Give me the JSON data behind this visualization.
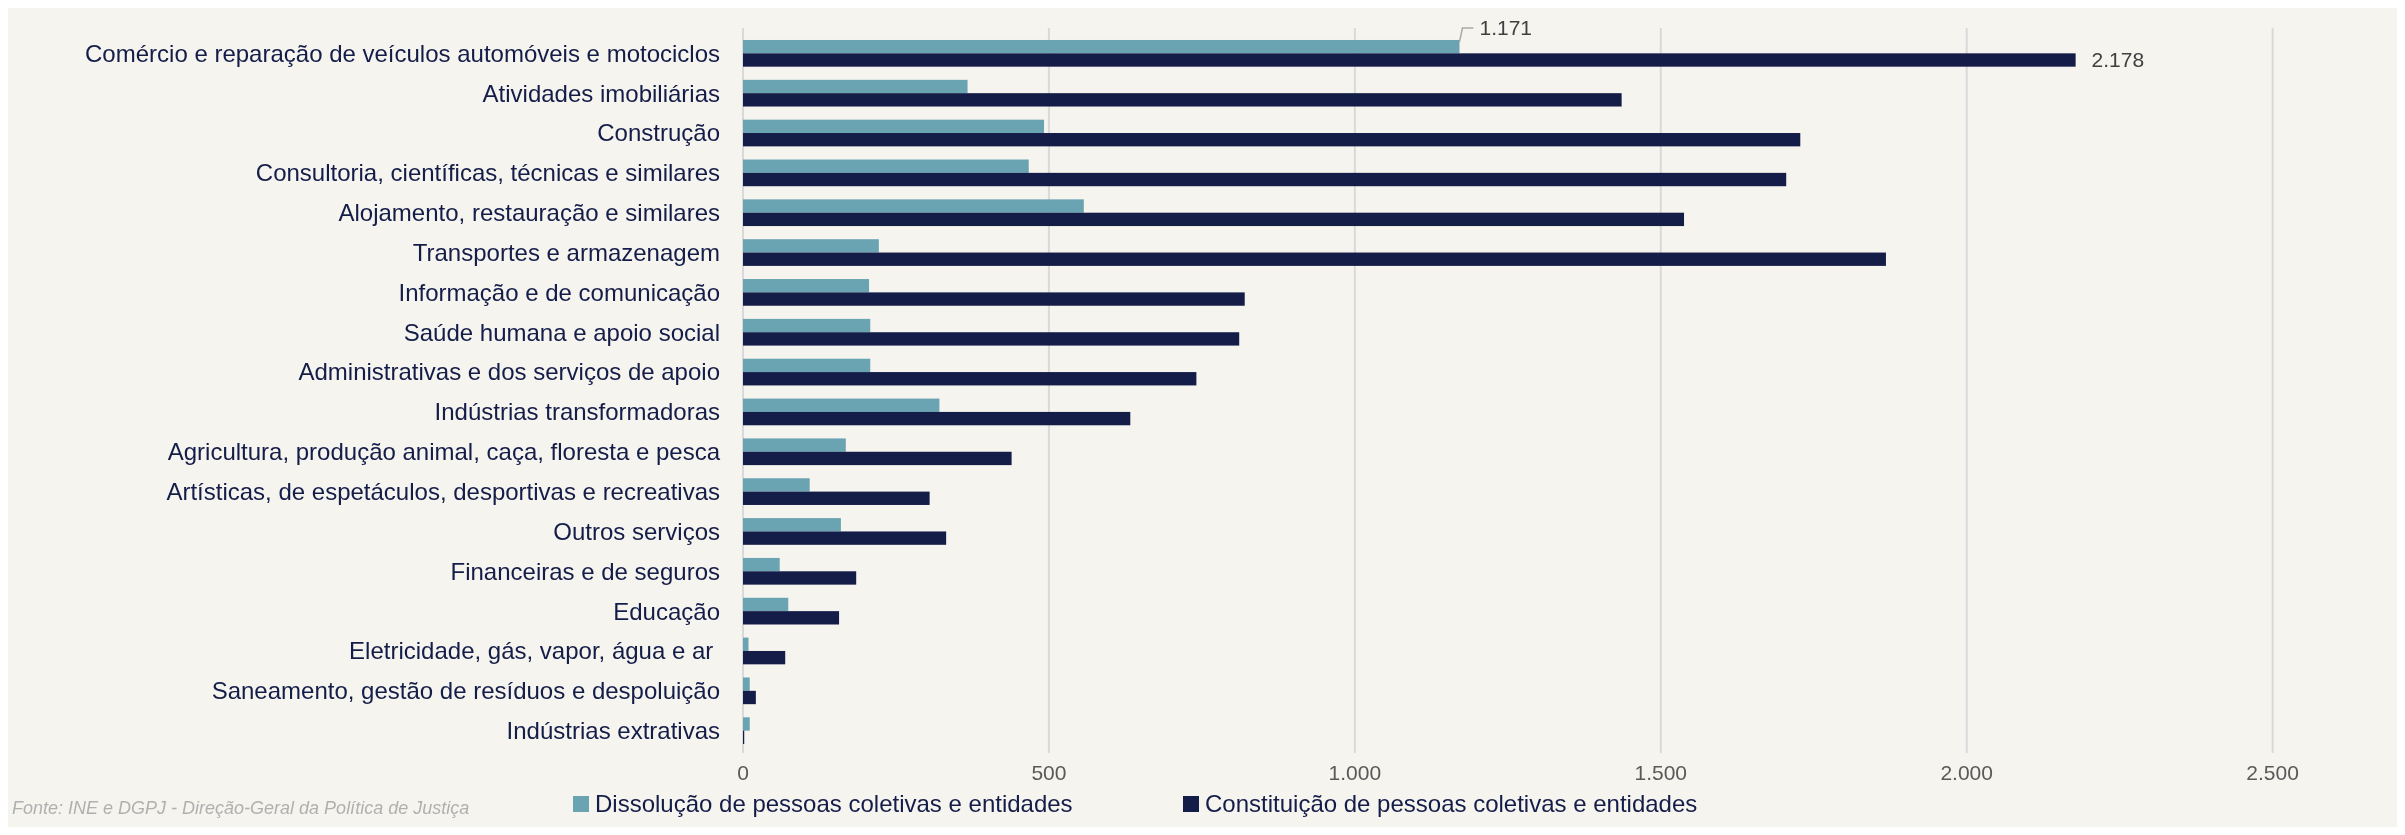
{
  "chart_data": {
    "type": "bar",
    "orientation": "horizontal",
    "categories": [
      "Comércio e reparação de veículos automóveis e motociclos",
      "Atividades imobiliárias",
      "Construção",
      "Consultoria, científicas, técnicas e similares",
      "Alojamento, restauração e similares",
      "Transportes e armazenagem",
      "Informação e de comunicação",
      "Saúde humana e apoio social",
      "Administrativas e dos serviços de apoio",
      "Indústrias transformadoras",
      "Agricultura, produção animal, caça, floresta e pesca",
      "Artísticas, de espetáculos, desportivas e recreativas",
      "Outros serviços",
      "Financeiras e de seguros",
      "Educação",
      "Eletricidade, gás, vapor, água e ar ",
      "Saneamento, gestão de resíduos e despoluição",
      "Indústrias extrativas"
    ],
    "series": [
      {
        "name": "Dissolução de pessoas coletivas e entidades",
        "color": "#6aa3b2",
        "values": [
          1171,
          367,
          492,
          467,
          557,
          222,
          206,
          208,
          208,
          321,
          168,
          109,
          160,
          60,
          74,
          9,
          11,
          11
        ],
        "value_labels": [
          "1.171",
          null,
          null,
          null,
          null,
          null,
          null,
          null,
          null,
          null,
          null,
          null,
          null,
          null,
          null,
          null,
          null,
          null
        ]
      },
      {
        "name": "Constituição de pessoas coletivas e entidades",
        "color": "#141c48",
        "values": [
          2178,
          1436,
          1728,
          1705,
          1538,
          1868,
          820,
          811,
          741,
          633,
          439,
          305,
          332,
          185,
          157,
          69,
          21,
          2
        ],
        "value_labels": [
          "2.178",
          null,
          null,
          null,
          null,
          null,
          null,
          null,
          null,
          null,
          null,
          null,
          null,
          null,
          null,
          null,
          null,
          null
        ]
      }
    ],
    "xlim": [
      0,
      2700
    ],
    "xticks": [
      0,
      500,
      {
        "value": 1000,
        "label": "1.000"
      },
      {
        "value": 1500,
        "label": "1.500"
      },
      {
        "value": 2000,
        "label": "2.000"
      },
      {
        "value": 2500,
        "label": "2.500"
      }
    ],
    "grid": "x",
    "legend": "bottom",
    "annotations": [
      "Fonte: INE e DGPJ - Direção-Geral da Política de Justiça"
    ]
  }
}
